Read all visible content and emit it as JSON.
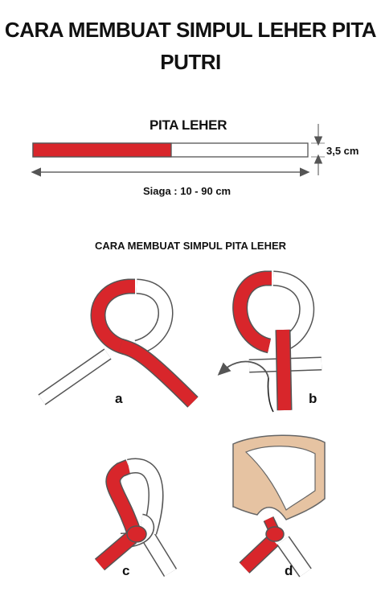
{
  "title": {
    "line1": "CARA MEMBUAT SIMPUL LEHER PITA",
    "line2": "PUTRI"
  },
  "ribbon": {
    "label": "PITA LEHER",
    "width_label": "3,5 cm",
    "length_label": "Siaga : 10 - 90 cm",
    "colors": {
      "red": "#d8262b",
      "white": "#ffffff",
      "outline": "#555555"
    }
  },
  "steps": {
    "title": "CARA MEMBUAT SIMPUL PITA LEHER",
    "labels": [
      "a",
      "b",
      "c",
      "d"
    ]
  },
  "colors": {
    "collar": "#e6c3a2",
    "arrow": "#666666"
  }
}
